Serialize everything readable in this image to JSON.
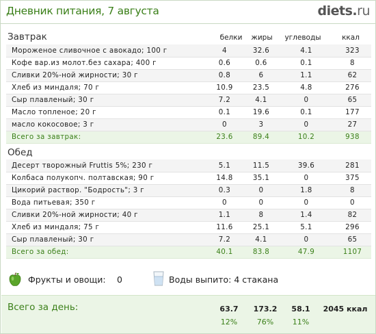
{
  "header": {
    "title": "Дневник питания, 7 августа",
    "logo": {
      "name": "diets",
      "dot": ".",
      "tld": "ru"
    }
  },
  "columns": {
    "protein": "белки",
    "fat": "жиры",
    "carbs": "углеводы",
    "kcal": "ккал"
  },
  "breakfast": {
    "title": "Завтрак",
    "items": [
      {
        "name": "Мороженое сливочное с авокадо; 100 г",
        "protein": "4",
        "fat": "32.6",
        "carbs": "4.1",
        "kcal": "323"
      },
      {
        "name": "Кофе вар.из молот.без сахара; 400 г",
        "protein": "0.6",
        "fat": "0.6",
        "carbs": "0.1",
        "kcal": "8"
      },
      {
        "name": "Сливки 20%-ной жирности; 30 г",
        "protein": "0.8",
        "fat": "6",
        "carbs": "1.1",
        "kcal": "62"
      },
      {
        "name": "Хлеб из миндаля; 70 г",
        "protein": "10.9",
        "fat": "23.5",
        "carbs": "4.8",
        "kcal": "276"
      },
      {
        "name": "Сыр плавленый; 30 г",
        "protein": "7.2",
        "fat": "4.1",
        "carbs": "0",
        "kcal": "65"
      },
      {
        "name": "Масло топленое; 20 г",
        "protein": "0.1",
        "fat": "19.6",
        "carbs": "0.1",
        "kcal": "177"
      },
      {
        "name": "масло кокосовое; 3 г",
        "protein": "0",
        "fat": "3",
        "carbs": "0",
        "kcal": "27"
      }
    ],
    "total": {
      "label": "Всего за завтрак:",
      "protein": "23.6",
      "fat": "89.4",
      "carbs": "10.2",
      "kcal": "938"
    }
  },
  "lunch": {
    "title": "Обед",
    "items": [
      {
        "name": "Десерт творожный Fruttis 5%; 230 г",
        "protein": "5.1",
        "fat": "11.5",
        "carbs": "39.6",
        "kcal": "281"
      },
      {
        "name": "Колбаса полукопч. полтавская; 90 г",
        "protein": "14.8",
        "fat": "35.1",
        "carbs": "0",
        "kcal": "375"
      },
      {
        "name": "Цикорий раствор. \"Бодрость\"; 3 г",
        "protein": "0.3",
        "fat": "0",
        "carbs": "1.8",
        "kcal": "8"
      },
      {
        "name": "Вода питьевая; 350 г",
        "protein": "0",
        "fat": "0",
        "carbs": "0",
        "kcal": "0"
      },
      {
        "name": "Сливки 20%-ной жирности; 40 г",
        "protein": "1.1",
        "fat": "8",
        "carbs": "1.4",
        "kcal": "82"
      },
      {
        "name": "Хлеб из миндаля; 75 г",
        "protein": "11.6",
        "fat": "25.1",
        "carbs": "5.1",
        "kcal": "296"
      },
      {
        "name": "Сыр плавленый; 30 г",
        "protein": "7.2",
        "fat": "4.1",
        "carbs": "0",
        "kcal": "65"
      }
    ],
    "total": {
      "label": "Всего за обед:",
      "protein": "40.1",
      "fat": "83.8",
      "carbs": "47.9",
      "kcal": "1107"
    }
  },
  "extras": {
    "fruits_label": "Фрукты и овощи:",
    "fruits_value": "0",
    "water_label": "Воды выпито: 4 стакана",
    "apple_icon": "green-apple-icon",
    "glass_icon": "water-glass-icon"
  },
  "day_total": {
    "label": "Всего за день:",
    "protein": "63.7",
    "fat": "173.2",
    "carbs": "58.1",
    "kcal": "2045 ккал",
    "protein_pct": "12%",
    "fat_pct": "76%",
    "carbs_pct": "11%"
  },
  "colors": {
    "accent_green": "#3a7f18",
    "total_bg": "#ebf5e6",
    "row_alt": "#f4f4f4"
  }
}
